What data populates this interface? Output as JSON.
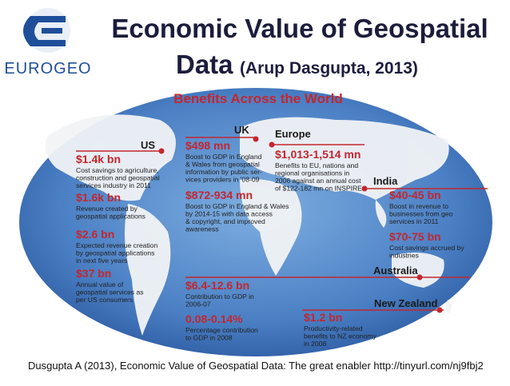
{
  "logo": {
    "text": "EUROGEO"
  },
  "title": {
    "line1": "Economic Value of Geospatial",
    "line2": "Data",
    "citation": "(Arup Dasgupta, 2013)"
  },
  "map": {
    "heading": "Benefits Across the World",
    "regions": [
      {
        "name": "US",
        "items": [
          {
            "value": "$1.4k bn",
            "lines": [
              "Cost savings to agriculture,",
              "construction and geospatial",
              "services industry in 2011"
            ]
          },
          {
            "value": "$1.6k bn",
            "lines": [
              "Revenue created by",
              "geospatial applications"
            ]
          },
          {
            "value": "$2.6 bn",
            "lines": [
              "Expected revenue creation",
              "by geospatial applications",
              "in next five years"
            ]
          },
          {
            "value": "$37 bn",
            "lines": [
              "Annual value of",
              "geospatial services as",
              "per US consumers"
            ]
          }
        ]
      },
      {
        "name": "UK",
        "items": [
          {
            "value": "$498 mn",
            "lines": [
              "Boost to GDP in England",
              "& Wales from geospatial",
              "information by public ser-",
              "vices providers in '08-09"
            ]
          },
          {
            "value": "$872-934 mn",
            "lines": [
              "Boost to GDP in England & Wales",
              "by 2014-15 with data access",
              "& copyright, and improved",
              "awareness"
            ]
          }
        ]
      },
      {
        "name": "Europe",
        "items": [
          {
            "value": "$1,013-1,514 mn",
            "lines": [
              "Benefits to EU, nations and",
              "regional organisations in",
              "2006 against an annual cost",
              "of $122-182 mn on INSPIRE"
            ]
          }
        ]
      },
      {
        "name": "India",
        "items": [
          {
            "value": "$40-45 bn",
            "lines": [
              "Boost in revenue to",
              "businesses from geo",
              "services in 2011"
            ]
          },
          {
            "value": "$70-75 bn",
            "lines": [
              "Cost savings accrued by",
              "industries"
            ]
          }
        ]
      },
      {
        "name": "Australia",
        "items": [
          {
            "value": "$6.4-12.6 bn",
            "lines": [
              "Contribution to GDP in",
              "2006-07"
            ]
          },
          {
            "value": "0.08-0.14%",
            "lines": [
              "Percentage contribution",
              "to GDP in 2008"
            ]
          }
        ]
      },
      {
        "name": "New Zealand",
        "items": [
          {
            "value": "$1.2 bn",
            "lines": [
              "Productivity-related",
              "benefits to NZ economy",
              "in 2008"
            ]
          }
        ]
      }
    ]
  },
  "footer": "Dusgupta A (2013), Economic Value of Geospatial Data: The great enabler http://tinyurl.com/nj9fbj2"
}
